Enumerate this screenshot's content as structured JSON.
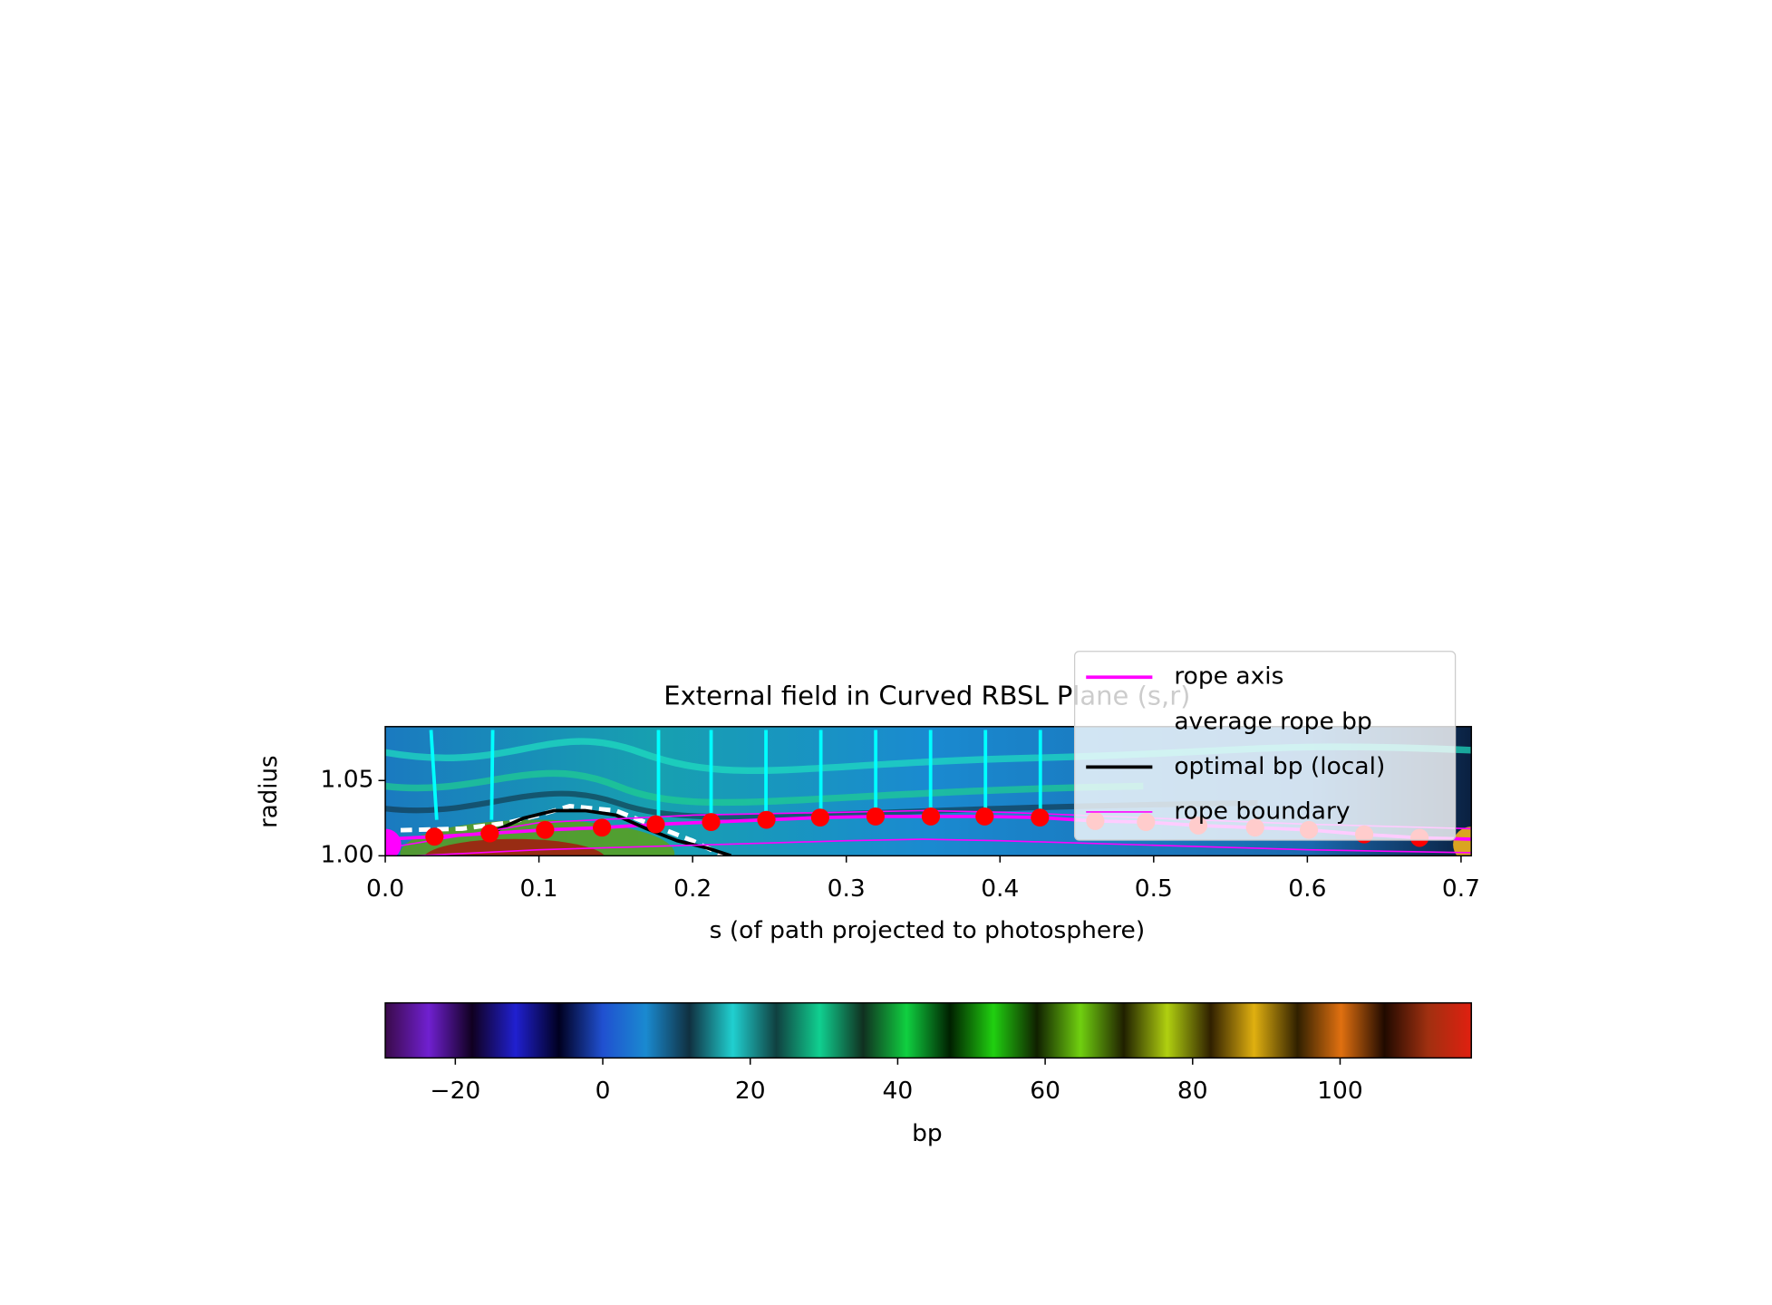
{
  "chart_data": {
    "type": "line",
    "title": "External field in Curved RBSL Plane (s,r)",
    "xlabel": "s (of path projected to photosphere)",
    "ylabel": "radius",
    "xlim": [
      0,
      0.7067
    ],
    "ylim": [
      1.0,
      1.0858
    ],
    "xticks": [
      {
        "value": 0,
        "label": "0.0"
      },
      0.1,
      0.2,
      0.3,
      0.4,
      0.5,
      0.6,
      0.7
    ],
    "yticks": [
      {
        "value": 1.0,
        "label": "1.00"
      },
      {
        "value": 1.05,
        "label": "1.05"
      }
    ],
    "legend": "upper right",
    "series": [
      {
        "name": "rope axis",
        "color": "#ff00ff",
        "width": 3,
        "x": [
          0,
          0.032,
          0.068,
          0.104,
          0.141,
          0.176,
          0.212,
          0.248,
          0.283,
          0.319,
          0.355,
          0.39,
          0.426,
          0.462,
          0.495,
          0.529,
          0.566,
          0.601,
          0.637,
          0.673,
          0.7067
        ],
        "values": [
          1.011,
          1.0127,
          1.0149,
          1.0172,
          1.0187,
          1.0209,
          1.0224,
          1.0239,
          1.0254,
          1.0261,
          1.0261,
          1.0261,
          1.0254,
          1.0231,
          1.0224,
          1.0201,
          1.0187,
          1.0172,
          1.0142,
          1.0119,
          1.011
        ]
      },
      {
        "name": "average rope bp",
        "color": "#ffffff",
        "width": 4,
        "dash": "10,6",
        "x": [
          0.01,
          0.05,
          0.08,
          0.1,
          0.12,
          0.15,
          0.18,
          0.2,
          0.22
        ],
        "values": [
          1.017,
          1.018,
          1.022,
          1.027,
          1.033,
          1.03,
          1.018,
          1.01,
          1.0
        ]
      },
      {
        "name": "optimal bp (local)",
        "color": "#000000",
        "width": 3,
        "x": [
          0.07,
          0.09,
          0.11,
          0.13,
          0.15,
          0.17,
          0.19,
          0.21,
          0.225
        ],
        "values": [
          1.016,
          1.025,
          1.03,
          1.03,
          1.027,
          1.018,
          1.01,
          1.005,
          1.0
        ]
      },
      {
        "name": "rope boundary",
        "color": "#ff00ff",
        "width": 1.3,
        "x": [
          0,
          0.1,
          0.2,
          0.3,
          0.35,
          0.4,
          0.5,
          0.6,
          0.7067
        ],
        "values": [
          1.005,
          1.022,
          1.027,
          1.029,
          1.03,
          1.029,
          1.025,
          1.021,
          1.018
        ]
      },
      {
        "color": "#ff00ff",
        "width": 1.3,
        "x": [
          0.02,
          0.1,
          0.2,
          0.3,
          0.35,
          0.4,
          0.5,
          0.6,
          0.7067
        ],
        "values": [
          1.0,
          1.004,
          1.007,
          1.01,
          1.011,
          1.01,
          1.007,
          1.004,
          1.002
        ]
      },
      {
        "color": "#ff0000",
        "marker": "o",
        "x": [
          0.032,
          0.068,
          0.104,
          0.141,
          0.176,
          0.212,
          0.248,
          0.283,
          0.319,
          0.355,
          0.39,
          0.426,
          0.462,
          0.495,
          0.529,
          0.566,
          0.601,
          0.637,
          0.673
        ],
        "values": [
          1.0127,
          1.0149,
          1.0172,
          1.0187,
          1.0209,
          1.0224,
          1.0239,
          1.0254,
          1.0261,
          1.0261,
          1.0261,
          1.0254,
          1.0231,
          1.0224,
          1.0201,
          1.0187,
          1.0172,
          1.0142,
          1.0119
        ]
      }
    ],
    "colorbar": {
      "label": "bp",
      "lim": [
        -29.5,
        117.8
      ],
      "ticks": [
        {
          "value": -20,
          "label": "−20"
        },
        0,
        20,
        40,
        60,
        80,
        100
      ],
      "colors": [
        "#3a0a4a",
        "#7020d0",
        "#100020",
        "#2020d0",
        "#000020",
        "#2050d0",
        "#1a8ad0",
        "#103040",
        "#20d0d0",
        "#104040",
        "#10d090",
        "#103020",
        "#10d040",
        "#002000",
        "#20d010",
        "#102000",
        "#70d010",
        "#202000",
        "#b0d010",
        "#302000",
        "#e0b010",
        "#302000",
        "#e07010",
        "#200a00",
        "#a03010",
        "#e02010"
      ]
    }
  }
}
